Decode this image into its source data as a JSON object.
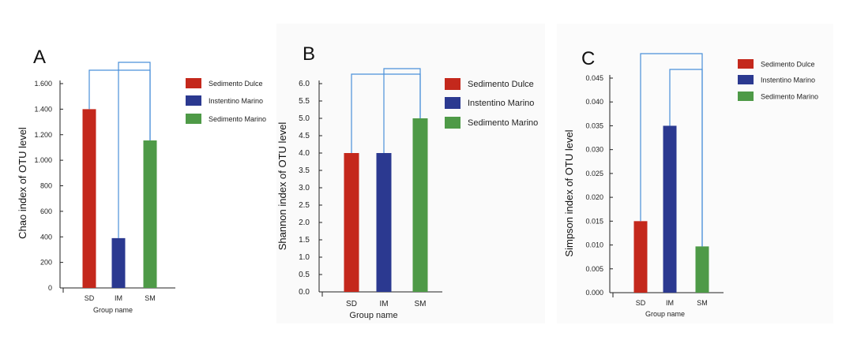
{
  "figure": {
    "colors": {
      "sd": "#c4281c",
      "im": "#2b3990",
      "sm": "#4e9a47",
      "bracket": "#4a90d9",
      "axis": "#222222"
    }
  },
  "chart_data": [
    {
      "panel": "A",
      "type": "bar",
      "categories": [
        "SD",
        "IM",
        "SM"
      ],
      "values": [
        1400,
        390,
        1155
      ],
      "ylabel": "Chao index of OTU level",
      "xlabel": "Group name",
      "yticks": [
        0,
        200,
        400,
        600,
        800,
        1000,
        1200,
        1400,
        1600
      ],
      "ytick_labels": [
        "0",
        "200",
        "400",
        "600",
        "800",
        "1.000",
        "1.200",
        "1.400",
        "1.600"
      ],
      "ylim": [
        0,
        1600
      ],
      "legend": [
        "Sedimento Dulce",
        "Instentino Marino",
        "Sedimento Marino"
      ]
    },
    {
      "panel": "B",
      "type": "bar",
      "categories": [
        "SD",
        "IM",
        "SM"
      ],
      "values": [
        4.0,
        4.0,
        5.0
      ],
      "ylabel": "Shannon index of OTU level",
      "xlabel": "Group name",
      "yticks": [
        0,
        0.5,
        1.0,
        1.5,
        2.0,
        2.5,
        3.0,
        3.5,
        4.0,
        4.5,
        5.0,
        5.5,
        6.0
      ],
      "ytick_labels": [
        "0.0",
        "0.5",
        "1.0",
        "1.5",
        "2.0",
        "2.5",
        "3.0",
        "3.5",
        "4.0",
        "4.5",
        "5.0",
        "5.5",
        "6.0"
      ],
      "ylim": [
        0,
        6.0
      ],
      "legend": [
        "Sedimento Dulce",
        "Instentino Marino",
        "Sedimento Marino"
      ]
    },
    {
      "panel": "C",
      "type": "bar",
      "categories": [
        "SD",
        "IM",
        "SM"
      ],
      "values": [
        0.015,
        0.035,
        0.0097
      ],
      "ylabel": "Simpson index of OTU level",
      "xlabel": "Group name",
      "yticks": [
        0,
        0.005,
        0.01,
        0.015,
        0.02,
        0.025,
        0.03,
        0.035,
        0.04,
        0.045
      ],
      "ytick_labels": [
        "0.000",
        "0.005",
        "0.010",
        "0.015",
        "0.020",
        "0.025",
        "0.030",
        "0.035",
        "0.040",
        "0.045"
      ],
      "ylim": [
        0,
        0.045
      ],
      "legend": [
        "Sedimento Dulce",
        "Instentino Marino",
        "Sedimento Marino"
      ]
    }
  ]
}
